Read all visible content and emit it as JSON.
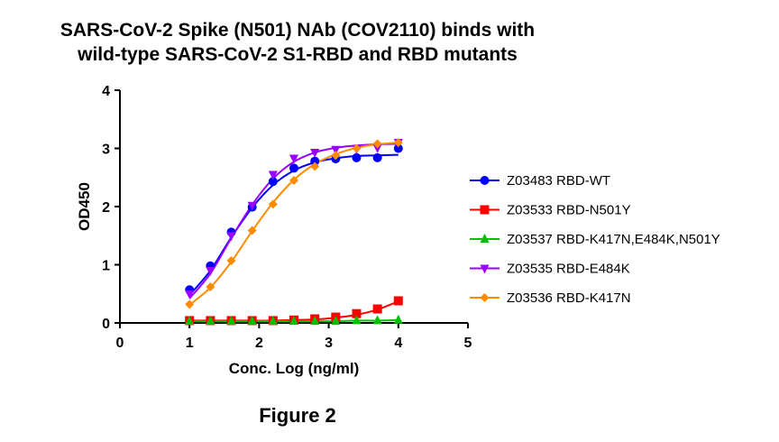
{
  "figure": {
    "title_line1": "SARS-CoV-2 Spike (N501) NAb (COV2110) binds with",
    "title_line2": "wild-type SARS-CoV-2 S1-RBD and RBD mutants",
    "caption": "Figure 2"
  },
  "chart_data": {
    "type": "scatter",
    "xlabel": "Conc. Log (ng/ml)",
    "ylabel": "OD450",
    "xlim": [
      0,
      5
    ],
    "ylim": [
      0,
      4
    ],
    "xticks": [
      "0",
      "1",
      "2",
      "3",
      "4",
      "5"
    ],
    "yticks": [
      "0",
      "1",
      "2",
      "3",
      "4"
    ],
    "grid": false,
    "legend_position": "right",
    "x": [
      1.0,
      1.3,
      1.6,
      1.9,
      2.2,
      2.5,
      2.8,
      3.1,
      3.4,
      3.7,
      4.0
    ],
    "series": [
      {
        "name": "Z03483 RBD-WT",
        "color": "#0000ff",
        "marker": "circle",
        "values": [
          0.57,
          0.98,
          1.56,
          1.99,
          2.43,
          2.66,
          2.78,
          2.82,
          2.84,
          2.84,
          3.0
        ],
        "curve": [
          0.48,
          0.9,
          1.47,
          1.98,
          2.37,
          2.62,
          2.76,
          2.83,
          2.87,
          2.88,
          2.89
        ]
      },
      {
        "name": "Z03533 RBD-N501Y",
        "color": "#ff0000",
        "marker": "square",
        "values": [
          0.04,
          0.04,
          0.04,
          0.04,
          0.04,
          0.05,
          0.07,
          0.1,
          0.16,
          0.24,
          0.38
        ],
        "curve": [
          0.04,
          0.04,
          0.04,
          0.04,
          0.04,
          0.05,
          0.06,
          0.09,
          0.14,
          0.23,
          0.37
        ]
      },
      {
        "name": "Z03537 RBD-K417N,E484K,N501Y",
        "color": "#00c000",
        "marker": "triangle-up",
        "values": [
          0.03,
          0.03,
          0.03,
          0.03,
          0.03,
          0.03,
          0.03,
          0.03,
          0.04,
          0.04,
          0.05
        ],
        "curve": [
          0.03,
          0.03,
          0.03,
          0.03,
          0.03,
          0.03,
          0.03,
          0.03,
          0.04,
          0.04,
          0.05
        ]
      },
      {
        "name": "Z03535 RBD-E484K",
        "color": "#9900ff",
        "marker": "triangle-down",
        "values": [
          0.5,
          0.9,
          1.5,
          2.02,
          2.55,
          2.83,
          2.93,
          2.98,
          2.99,
          3.01,
          3.1
        ],
        "curve": [
          0.42,
          0.85,
          1.46,
          2.03,
          2.48,
          2.77,
          2.93,
          3.01,
          3.05,
          3.07,
          3.08
        ]
      },
      {
        "name": "Z03536 RBD-K417N",
        "color": "#ff8c00",
        "marker": "diamond",
        "values": [
          0.32,
          0.62,
          1.07,
          1.59,
          2.04,
          2.45,
          2.69,
          2.88,
          3.0,
          3.08,
          3.1
        ],
        "curve": [
          0.31,
          0.61,
          1.05,
          1.58,
          2.07,
          2.46,
          2.73,
          2.9,
          3.01,
          3.07,
          3.1
        ]
      }
    ]
  }
}
